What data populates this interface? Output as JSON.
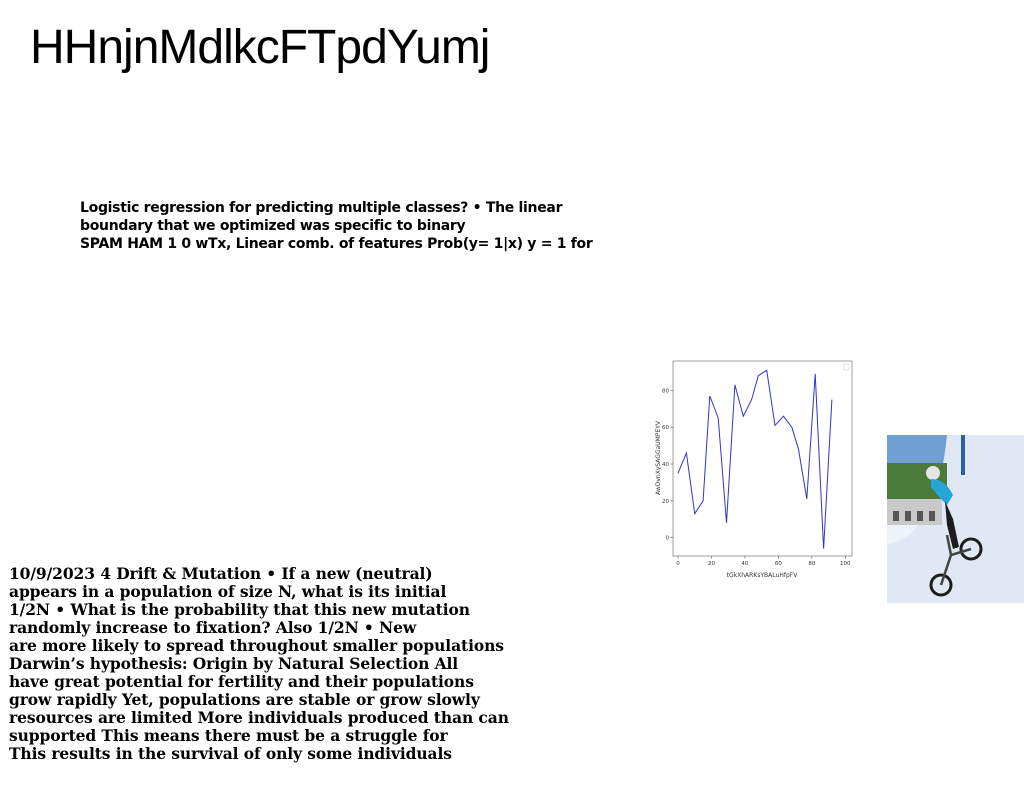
{
  "title": "HHnjnMdlkcFTpdYumj",
  "paragraph1": [
    "Logistic regression for predicting multiple classes? • The linear",
    "boundary that we optimized was specific to binary",
    "SPAM HAM 1 0 wTx, Linear comb. of features Prob(y= 1|x) y = 1 for"
  ],
  "paragraph2": [
    "10/9/2023 4 Drift & Mutation • If a new (neutral)",
    "appears in a population of size N, what is its initial",
    "1/2N • What is the probability that this new mutation",
    "randomly increase to fixation? Also 1/2N • New",
    "are more likely to spread throughout smaller populations",
    "Darwin’s hypothesis: Origin by Natural Selection All",
    "have great potential for fertility and their populations",
    "grow rapidly Yet, populations are stable or grow slowly",
    "resources are limited More individuals produced than can",
    "supported This means there must be a struggle for",
    "This results in the survival of only some individuals"
  ],
  "chart_data": {
    "type": "line",
    "xlabel": "tGkXhARKsYBALuHfpFV",
    "ylabel": "AwDvnXySAGGaUMPEYV",
    "xlim": [
      -3,
      104
    ],
    "ylim": [
      -10,
      96
    ],
    "xticks": [
      0,
      20,
      40,
      60,
      80,
      100
    ],
    "yticks": [
      0,
      20,
      40,
      60,
      80
    ],
    "grid": false,
    "series": [
      {
        "color": "#3333cc",
        "x": [
          0,
          5,
          10,
          15,
          19,
          24,
          29,
          34,
          39,
          44,
          48,
          53,
          58,
          63,
          68,
          72,
          77,
          82,
          87,
          92,
          96
        ],
        "y": [
          35,
          46,
          13,
          20,
          77,
          65,
          8,
          83,
          66,
          75,
          88,
          91,
          61,
          66,
          60,
          48,
          21,
          89,
          -6,
          75,
          null
        ]
      }
    ]
  },
  "photo": {
    "colors": {
      "sky": "#6f9fd0",
      "wall": "#dfe8f4",
      "trees": "#4c7a3a",
      "shirt": "#25a6d9"
    }
  }
}
